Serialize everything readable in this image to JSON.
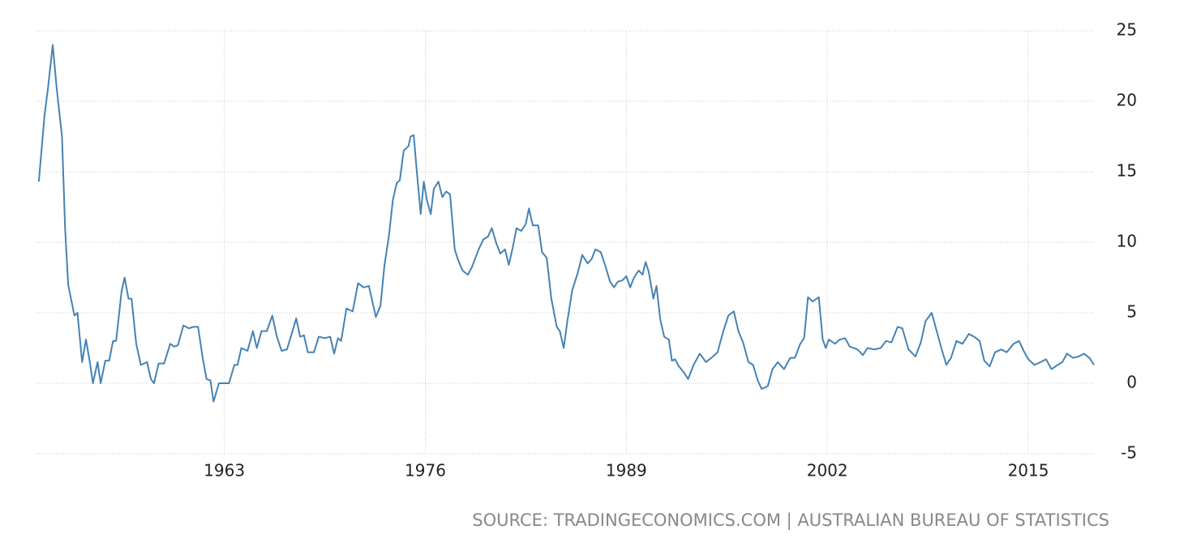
{
  "chart_data": {
    "type": "line",
    "source": "SOURCE: TRADINGECONOMICS.COM | AUSTRALIAN BUREAU OF STATISTICS",
    "x": [
      1951.0,
      1951.37,
      1951.6,
      1951.9,
      1952.15,
      1952.5,
      1952.7,
      1952.9,
      1953.3,
      1953.5,
      1953.8,
      1954.05,
      1954.3,
      1954.5,
      1954.8,
      1955.0,
      1955.3,
      1955.55,
      1955.8,
      1956.0,
      1956.35,
      1956.55,
      1956.8,
      1957.0,
      1957.3,
      1957.6,
      1958.0,
      1958.25,
      1958.45,
      1958.75,
      1959.1,
      1959.5,
      1959.75,
      1960.0,
      1960.35,
      1960.7,
      1961.0,
      1961.3,
      1961.6,
      1961.85,
      1962.1,
      1962.3,
      1962.65,
      1963.0,
      1963.3,
      1963.65,
      1963.85,
      1964.1,
      1964.5,
      1964.85,
      1965.1,
      1965.4,
      1965.75,
      1966.1,
      1966.4,
      1966.7,
      1967.05,
      1967.3,
      1967.65,
      1967.9,
      1968.15,
      1968.4,
      1968.8,
      1969.1,
      1969.5,
      1969.85,
      1970.1,
      1970.35,
      1970.55,
      1970.9,
      1971.3,
      1971.65,
      1972.0,
      1972.35,
      1972.8,
      1973.1,
      1973.35,
      1973.65,
      1973.9,
      1974.15,
      1974.35,
      1974.6,
      1974.9,
      1975.05,
      1975.25,
      1975.45,
      1975.7,
      1975.9,
      1976.1,
      1976.35,
      1976.55,
      1976.85,
      1977.1,
      1977.35,
      1977.6,
      1977.9,
      1978.1,
      1978.4,
      1978.75,
      1979.0,
      1979.45,
      1979.75,
      1980.05,
      1980.3,
      1980.6,
      1980.85,
      1981.15,
      1981.4,
      1981.65,
      1981.9,
      1982.2,
      1982.5,
      1982.7,
      1982.95,
      1983.3,
      1983.55,
      1983.85,
      1984.15,
      1984.5,
      1984.7,
      1984.95,
      1985.2,
      1985.5,
      1985.85,
      1986.15,
      1986.5,
      1986.75,
      1987.0,
      1987.35,
      1987.65,
      1987.95,
      1988.2,
      1988.45,
      1988.75,
      1989.0,
      1989.25,
      1989.5,
      1989.8,
      1990.05,
      1990.25,
      1990.45,
      1990.75,
      1990.95,
      1991.2,
      1991.45,
      1991.75,
      1991.95,
      1992.15,
      1992.4,
      1992.7,
      1993.0,
      1993.35,
      1993.75,
      1994.15,
      1994.5,
      1994.9,
      1995.3,
      1995.6,
      1995.95,
      1996.25,
      1996.55,
      1996.9,
      1997.2,
      1997.5,
      1997.75,
      1998.15,
      1998.45,
      1998.8,
      1999.2,
      1999.6,
      1999.9,
      2000.25,
      2000.5,
      2000.75,
      2001.05,
      2001.45,
      2001.7,
      2001.9,
      2002.1,
      2002.5,
      2002.8,
      2003.15,
      2003.45,
      2003.95,
      2004.3,
      2004.6,
      2005.05,
      2005.45,
      2005.8,
      2006.15,
      2006.55,
      2006.85,
      2007.25,
      2007.7,
      2008.05,
      2008.35,
      2008.75,
      2009.05,
      2009.4,
      2009.7,
      2010.0,
      2010.35,
      2010.75,
      2011.15,
      2011.5,
      2011.85,
      2012.15,
      2012.5,
      2012.85,
      2013.25,
      2013.6,
      2014.05,
      2014.4,
      2014.7,
      2015.0,
      2015.4,
      2015.8,
      2016.15,
      2016.5,
      2016.9,
      2017.2,
      2017.5,
      2017.9,
      2018.25,
      2018.6,
      2018.95,
      2019.25
    ],
    "series": [
      {
        "color": "#4682b4",
        "values": [
          14.3,
          19,
          21,
          24,
          21,
          17.5,
          11,
          7,
          4.8,
          5,
          1.5,
          3.1,
          1.5,
          0,
          1.5,
          0,
          1.6,
          1.6,
          3,
          3,
          6.5,
          7.5,
          6,
          6,
          2.8,
          1.3,
          1.5,
          0.3,
          0,
          1.4,
          1.4,
          2.8,
          2.6,
          2.7,
          4.1,
          3.9,
          4.0,
          4.0,
          1.8,
          0.3,
          0.2,
          -1.3,
          0,
          0,
          0,
          1.3,
          1.3,
          2.5,
          2.3,
          3.7,
          2.5,
          3.7,
          3.7,
          4.8,
          3.3,
          2.3,
          2.4,
          3.3,
          4.6,
          3.3,
          3.4,
          2.2,
          2.2,
          3.3,
          3.2,
          3.3,
          2.1,
          3.2,
          3.0,
          5.3,
          5.1,
          7.1,
          6.8,
          6.9,
          4.7,
          5.5,
          8.3,
          10.5,
          13,
          14.2,
          14.4,
          16.5,
          16.8,
          17.5,
          17.6,
          15,
          12,
          14.3,
          13,
          12,
          13.8,
          14.3,
          13.2,
          13.6,
          13.4,
          9.5,
          8.8,
          8.0,
          7.7,
          8.2,
          9.5,
          10.2,
          10.4,
          11.0,
          9.9,
          9.2,
          9.5,
          8.4,
          9.6,
          11.0,
          10.8,
          11.3,
          12.4,
          11.2,
          11.2,
          9.3,
          8.9,
          6.0,
          4.0,
          3.7,
          2.5,
          4.5,
          6.6,
          7.8,
          9.1,
          8.5,
          8.8,
          9.5,
          9.3,
          8.3,
          7.2,
          6.8,
          7.2,
          7.3,
          7.6,
          6.8,
          7.5,
          8.0,
          7.7,
          8.6,
          7.9,
          6.0,
          6.9,
          4.5,
          3.3,
          3.1,
          1.6,
          1.7,
          1.2,
          0.8,
          0.3,
          1.3,
          2.1,
          1.5,
          1.8,
          2.2,
          3.8,
          4.8,
          5.1,
          3.7,
          2.9,
          1.5,
          1.3,
          0.2,
          -0.4,
          -0.2,
          1.0,
          1.5,
          1.0,
          1.8,
          1.8,
          2.8,
          3.2,
          6.1,
          5.8,
          6.1,
          3.1,
          2.5,
          3.1,
          2.8,
          3.1,
          3.2,
          2.6,
          2.4,
          2.0,
          2.5,
          2.4,
          2.5,
          3.0,
          2.9,
          4.0,
          3.9,
          2.4,
          1.9,
          2.9,
          4.4,
          5.0,
          3.8,
          2.4,
          1.3,
          1.8,
          3.0,
          2.8,
          3.5,
          3.3,
          3.0,
          1.6,
          1.2,
          2.2,
          2.4,
          2.2,
          2.8,
          3.0,
          2.3,
          1.7,
          1.3,
          1.5,
          1.7,
          1.0,
          1.3,
          1.5,
          2.1,
          1.8,
          1.9,
          2.1,
          1.8,
          1.3
        ]
      }
    ],
    "xlim": [
      1950.85,
      2019.3
    ],
    "xticks": [
      1963,
      1976,
      1989,
      2002,
      2015
    ],
    "ylim": [
      -5,
      25
    ],
    "yticks": [
      -5,
      0,
      5,
      10,
      15,
      20,
      25
    ],
    "grid": true
  }
}
